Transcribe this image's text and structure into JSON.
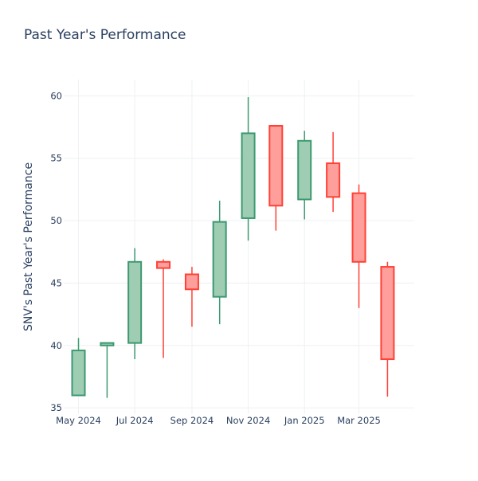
{
  "chart_data": {
    "type": "candlestick",
    "title": "Past Year's Performance",
    "ylabel": "SNV's Past Year's Performance",
    "xlabel": "",
    "ylim": [
      34.5,
      61.3
    ],
    "yticks": [
      35,
      40,
      45,
      50,
      55,
      60
    ],
    "x_ticks": [
      "May 2024",
      "Jul 2024",
      "Sep 2024",
      "Nov 2024",
      "Jan 2025",
      "Mar 2025"
    ],
    "grid": true,
    "colors": {
      "increasing": "#3d9970",
      "increasing_fill": "#9fcdb4",
      "decreasing": "#ff4136",
      "decreasing_fill": "#ff9f9b",
      "text": "#2a3f5f"
    },
    "candles": [
      {
        "date": "2024-05",
        "open": 36.0,
        "high": 40.6,
        "low": 36.0,
        "close": 39.6
      },
      {
        "date": "2024-06",
        "open": 40.0,
        "high": 40.2,
        "low": 35.8,
        "close": 40.2
      },
      {
        "date": "2024-07",
        "open": 40.2,
        "high": 47.8,
        "low": 38.9,
        "close": 46.7
      },
      {
        "date": "2024-08",
        "open": 46.7,
        "high": 46.9,
        "low": 39.0,
        "close": 46.2
      },
      {
        "date": "2024-09",
        "open": 45.7,
        "high": 46.3,
        "low": 41.5,
        "close": 44.5
      },
      {
        "date": "2024-10",
        "open": 43.9,
        "high": 51.6,
        "low": 41.7,
        "close": 49.9
      },
      {
        "date": "2024-11",
        "open": 50.2,
        "high": 59.9,
        "low": 48.4,
        "close": 57.0
      },
      {
        "date": "2024-12",
        "open": 57.6,
        "high": 57.6,
        "low": 49.2,
        "close": 51.2
      },
      {
        "date": "2025-01",
        "open": 51.7,
        "high": 57.2,
        "low": 50.1,
        "close": 56.4
      },
      {
        "date": "2025-02",
        "open": 54.6,
        "high": 57.1,
        "low": 50.7,
        "close": 51.9
      },
      {
        "date": "2025-03",
        "open": 52.2,
        "high": 52.9,
        "low": 43.0,
        "close": 46.7
      },
      {
        "date": "2025-04",
        "open": 46.3,
        "high": 46.7,
        "low": 35.9,
        "close": 38.9
      }
    ]
  }
}
